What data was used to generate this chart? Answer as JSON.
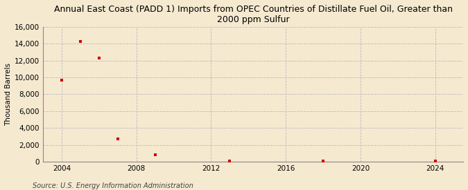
{
  "title": "Annual East Coast (PADD 1) Imports from OPEC Countries of Distillate Fuel Oil, Greater than\n2000 ppm Sulfur",
  "ylabel": "Thousand Barrels",
  "source": "Source: U.S. Energy Information Administration",
  "background_color": "#f5e9d0",
  "plot_background_color": "#f5e9d0",
  "data_x": [
    2004,
    2005,
    2006,
    2007,
    2009,
    2013,
    2018,
    2024
  ],
  "data_y": [
    9700,
    14300,
    12300,
    2700,
    800,
    100,
    100,
    50
  ],
  "marker_color": "#cc0000",
  "marker": "s",
  "marker_size": 3.5,
  "xlim": [
    2003,
    2025.5
  ],
  "ylim": [
    0,
    16000
  ],
  "yticks": [
    0,
    2000,
    4000,
    6000,
    8000,
    10000,
    12000,
    14000,
    16000
  ],
  "xticks": [
    2004,
    2008,
    2012,
    2016,
    2020,
    2024
  ],
  "grid_color": "#bbbbbb",
  "grid_style": "--",
  "title_fontsize": 9,
  "axis_fontsize": 7.5,
  "tick_fontsize": 7.5,
  "source_fontsize": 7
}
